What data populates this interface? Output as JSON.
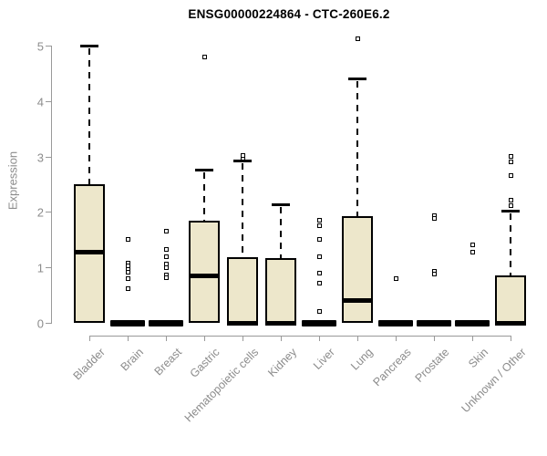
{
  "title": "ENSG00000224864 - CTC-260E6.2",
  "y_axis": {
    "label": "Expression",
    "ticks": [
      "0",
      "1",
      "2",
      "3",
      "4",
      "5"
    ],
    "min": 0,
    "max": 5
  },
  "colors": {
    "background": "#ffffff",
    "box_fill": "#EDE7CB",
    "box_border": "#000000",
    "median": "#000000",
    "axis_line": "#999999",
    "tick_text": "#8c8c8c",
    "title_text": "#000000"
  },
  "chart_data": {
    "type": "boxplot",
    "title": "ENSG00000224864 - CTC-260E6.2",
    "xlabel": "",
    "ylabel": "Expression",
    "ylim": [
      0,
      5
    ],
    "grid": false,
    "legend": "none",
    "y_ticks": [
      0,
      1,
      2,
      3,
      4,
      5
    ],
    "categories": [
      "Bladder",
      "Brain",
      "Breast",
      "Gastric",
      "Hematopoietic cells",
      "Kidney",
      "Liver",
      "Lung",
      "Pancreas",
      "Prostate",
      "Skin",
      "Unknown / Other"
    ],
    "series": [
      {
        "name": "Bladder",
        "q1": 0,
        "median": 1.27,
        "q3": 2.5,
        "whisker_low": 0,
        "whisker_high": 5.0,
        "outliers": []
      },
      {
        "name": "Brain",
        "q1": 0,
        "median": 0,
        "q3": 0,
        "whisker_low": 0,
        "whisker_high": 0,
        "outliers": [
          1.5,
          1.08,
          1.03,
          0.97,
          0.91,
          0.8,
          0.61
        ]
      },
      {
        "name": "Breast",
        "q1": 0,
        "median": 0,
        "q3": 0,
        "whisker_low": 0,
        "whisker_high": 0,
        "outliers": [
          1.66,
          1.33,
          1.19,
          1.06,
          1.0,
          0.87,
          0.82
        ]
      },
      {
        "name": "Gastric",
        "q1": 0,
        "median": 0.84,
        "q3": 1.85,
        "whisker_low": 0,
        "whisker_high": 2.77,
        "outliers": [
          4.8
        ]
      },
      {
        "name": "Hematopoietic cells",
        "q1": 0,
        "median": 0,
        "q3": 1.18,
        "whisker_low": 0,
        "whisker_high": 2.93,
        "outliers": [
          3.02,
          2.96
        ]
      },
      {
        "name": "Kidney",
        "q1": 0,
        "median": 0,
        "q3": 1.17,
        "whisker_low": 0,
        "whisker_high": 2.13,
        "outliers": []
      },
      {
        "name": "Liver",
        "q1": 0,
        "median": 0,
        "q3": 0,
        "whisker_low": 0,
        "whisker_high": 0,
        "outliers": [
          1.85,
          1.75,
          1.5,
          1.19,
          0.9,
          0.72,
          0.2
        ]
      },
      {
        "name": "Lung",
        "q1": 0,
        "median": 0.4,
        "q3": 1.92,
        "whisker_low": 0,
        "whisker_high": 4.4,
        "outliers": [
          5.12
        ]
      },
      {
        "name": "Pancreas",
        "q1": 0,
        "median": 0,
        "q3": 0,
        "whisker_low": 0,
        "whisker_high": 0,
        "outliers": [
          0.79
        ]
      },
      {
        "name": "Prostate",
        "q1": 0,
        "median": 0,
        "q3": 0,
        "whisker_low": 0,
        "whisker_high": 0,
        "outliers": [
          1.93,
          1.89,
          0.93,
          0.88
        ]
      },
      {
        "name": "Skin",
        "q1": 0,
        "median": 0,
        "q3": 0,
        "whisker_low": 0,
        "whisker_high": 0,
        "outliers": [
          1.4,
          1.28
        ]
      },
      {
        "name": "Unknown / Other",
        "q1": 0,
        "median": 0,
        "q3": 0.85,
        "whisker_low": 0,
        "whisker_high": 2.02,
        "outliers": [
          3.0,
          2.9,
          2.65,
          2.22,
          2.12
        ]
      }
    ]
  }
}
